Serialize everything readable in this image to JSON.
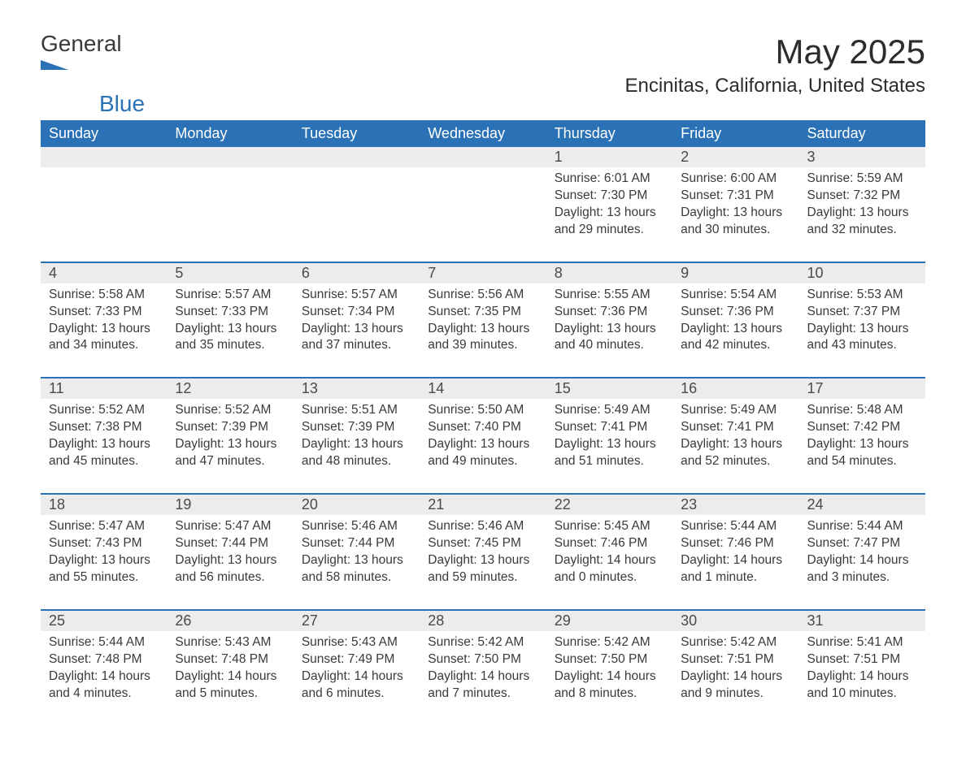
{
  "logo": {
    "text_general": "General",
    "text_blue": "Blue",
    "arrow_color": "#2a72b5"
  },
  "title": "May 2025",
  "location": "Encinitas, California, United States",
  "colors": {
    "header_bg": "#2a72b5",
    "header_text": "#ffffff",
    "daynum_bg": "#ececec",
    "text": "#3a3a3a",
    "rule": "#2a72b5"
  },
  "days_of_week": [
    "Sunday",
    "Monday",
    "Tuesday",
    "Wednesday",
    "Thursday",
    "Friday",
    "Saturday"
  ],
  "weeks": [
    [
      null,
      null,
      null,
      null,
      {
        "n": "1",
        "sr": "Sunrise: 6:01 AM",
        "ss": "Sunset: 7:30 PM",
        "dl1": "Daylight: 13 hours",
        "dl2": "and 29 minutes."
      },
      {
        "n": "2",
        "sr": "Sunrise: 6:00 AM",
        "ss": "Sunset: 7:31 PM",
        "dl1": "Daylight: 13 hours",
        "dl2": "and 30 minutes."
      },
      {
        "n": "3",
        "sr": "Sunrise: 5:59 AM",
        "ss": "Sunset: 7:32 PM",
        "dl1": "Daylight: 13 hours",
        "dl2": "and 32 minutes."
      }
    ],
    [
      {
        "n": "4",
        "sr": "Sunrise: 5:58 AM",
        "ss": "Sunset: 7:33 PM",
        "dl1": "Daylight: 13 hours",
        "dl2": "and 34 minutes."
      },
      {
        "n": "5",
        "sr": "Sunrise: 5:57 AM",
        "ss": "Sunset: 7:33 PM",
        "dl1": "Daylight: 13 hours",
        "dl2": "and 35 minutes."
      },
      {
        "n": "6",
        "sr": "Sunrise: 5:57 AM",
        "ss": "Sunset: 7:34 PM",
        "dl1": "Daylight: 13 hours",
        "dl2": "and 37 minutes."
      },
      {
        "n": "7",
        "sr": "Sunrise: 5:56 AM",
        "ss": "Sunset: 7:35 PM",
        "dl1": "Daylight: 13 hours",
        "dl2": "and 39 minutes."
      },
      {
        "n": "8",
        "sr": "Sunrise: 5:55 AM",
        "ss": "Sunset: 7:36 PM",
        "dl1": "Daylight: 13 hours",
        "dl2": "and 40 minutes."
      },
      {
        "n": "9",
        "sr": "Sunrise: 5:54 AM",
        "ss": "Sunset: 7:36 PM",
        "dl1": "Daylight: 13 hours",
        "dl2": "and 42 minutes."
      },
      {
        "n": "10",
        "sr": "Sunrise: 5:53 AM",
        "ss": "Sunset: 7:37 PM",
        "dl1": "Daylight: 13 hours",
        "dl2": "and 43 minutes."
      }
    ],
    [
      {
        "n": "11",
        "sr": "Sunrise: 5:52 AM",
        "ss": "Sunset: 7:38 PM",
        "dl1": "Daylight: 13 hours",
        "dl2": "and 45 minutes."
      },
      {
        "n": "12",
        "sr": "Sunrise: 5:52 AM",
        "ss": "Sunset: 7:39 PM",
        "dl1": "Daylight: 13 hours",
        "dl2": "and 47 minutes."
      },
      {
        "n": "13",
        "sr": "Sunrise: 5:51 AM",
        "ss": "Sunset: 7:39 PM",
        "dl1": "Daylight: 13 hours",
        "dl2": "and 48 minutes."
      },
      {
        "n": "14",
        "sr": "Sunrise: 5:50 AM",
        "ss": "Sunset: 7:40 PM",
        "dl1": "Daylight: 13 hours",
        "dl2": "and 49 minutes."
      },
      {
        "n": "15",
        "sr": "Sunrise: 5:49 AM",
        "ss": "Sunset: 7:41 PM",
        "dl1": "Daylight: 13 hours",
        "dl2": "and 51 minutes."
      },
      {
        "n": "16",
        "sr": "Sunrise: 5:49 AM",
        "ss": "Sunset: 7:41 PM",
        "dl1": "Daylight: 13 hours",
        "dl2": "and 52 minutes."
      },
      {
        "n": "17",
        "sr": "Sunrise: 5:48 AM",
        "ss": "Sunset: 7:42 PM",
        "dl1": "Daylight: 13 hours",
        "dl2": "and 54 minutes."
      }
    ],
    [
      {
        "n": "18",
        "sr": "Sunrise: 5:47 AM",
        "ss": "Sunset: 7:43 PM",
        "dl1": "Daylight: 13 hours",
        "dl2": "and 55 minutes."
      },
      {
        "n": "19",
        "sr": "Sunrise: 5:47 AM",
        "ss": "Sunset: 7:44 PM",
        "dl1": "Daylight: 13 hours",
        "dl2": "and 56 minutes."
      },
      {
        "n": "20",
        "sr": "Sunrise: 5:46 AM",
        "ss": "Sunset: 7:44 PM",
        "dl1": "Daylight: 13 hours",
        "dl2": "and 58 minutes."
      },
      {
        "n": "21",
        "sr": "Sunrise: 5:46 AM",
        "ss": "Sunset: 7:45 PM",
        "dl1": "Daylight: 13 hours",
        "dl2": "and 59 minutes."
      },
      {
        "n": "22",
        "sr": "Sunrise: 5:45 AM",
        "ss": "Sunset: 7:46 PM",
        "dl1": "Daylight: 14 hours",
        "dl2": "and 0 minutes."
      },
      {
        "n": "23",
        "sr": "Sunrise: 5:44 AM",
        "ss": "Sunset: 7:46 PM",
        "dl1": "Daylight: 14 hours",
        "dl2": "and 1 minute."
      },
      {
        "n": "24",
        "sr": "Sunrise: 5:44 AM",
        "ss": "Sunset: 7:47 PM",
        "dl1": "Daylight: 14 hours",
        "dl2": "and 3 minutes."
      }
    ],
    [
      {
        "n": "25",
        "sr": "Sunrise: 5:44 AM",
        "ss": "Sunset: 7:48 PM",
        "dl1": "Daylight: 14 hours",
        "dl2": "and 4 minutes."
      },
      {
        "n": "26",
        "sr": "Sunrise: 5:43 AM",
        "ss": "Sunset: 7:48 PM",
        "dl1": "Daylight: 14 hours",
        "dl2": "and 5 minutes."
      },
      {
        "n": "27",
        "sr": "Sunrise: 5:43 AM",
        "ss": "Sunset: 7:49 PM",
        "dl1": "Daylight: 14 hours",
        "dl2": "and 6 minutes."
      },
      {
        "n": "28",
        "sr": "Sunrise: 5:42 AM",
        "ss": "Sunset: 7:50 PM",
        "dl1": "Daylight: 14 hours",
        "dl2": "and 7 minutes."
      },
      {
        "n": "29",
        "sr": "Sunrise: 5:42 AM",
        "ss": "Sunset: 7:50 PM",
        "dl1": "Daylight: 14 hours",
        "dl2": "and 8 minutes."
      },
      {
        "n": "30",
        "sr": "Sunrise: 5:42 AM",
        "ss": "Sunset: 7:51 PM",
        "dl1": "Daylight: 14 hours",
        "dl2": "and 9 minutes."
      },
      {
        "n": "31",
        "sr": "Sunrise: 5:41 AM",
        "ss": "Sunset: 7:51 PM",
        "dl1": "Daylight: 14 hours",
        "dl2": "and 10 minutes."
      }
    ]
  ]
}
